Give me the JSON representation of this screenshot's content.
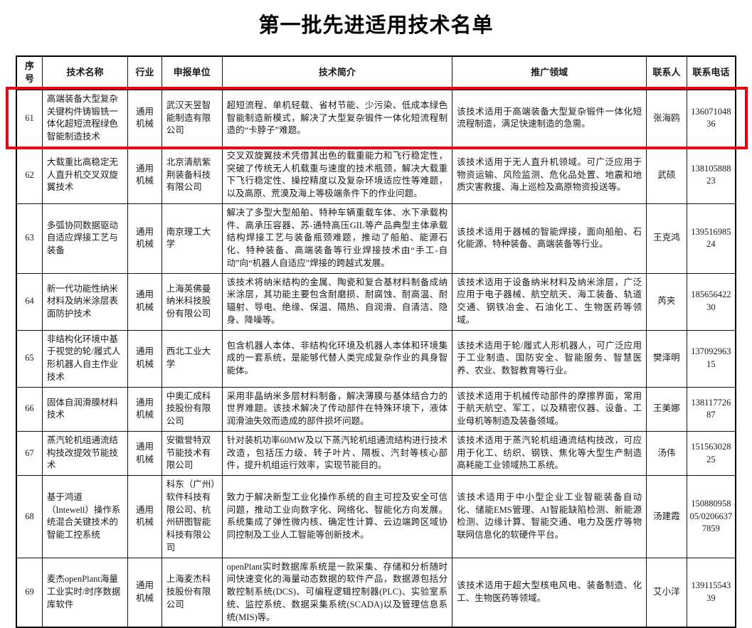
{
  "title": "第一批先进适用技术名单",
  "accent_red": "#e60012",
  "table": {
    "headers": [
      "序号",
      "技术名称",
      "行业",
      "申报单位",
      "技术简介",
      "推广领域",
      "联系人",
      "联系电话"
    ],
    "rows": [
      {
        "no": "61",
        "name": "高端装备大型复杂关键构件铸锻铣一体化超短流程绿色智能制造技术",
        "industry": "通用机械",
        "org": "武汉天昱智能制造有限公司",
        "brief": "超短流程、单机轻载、省材节能、少污染、低成本绿色智能制造新模式，解决了大型复杂锻件一体化短流程制造的“卡脖子”难题。",
        "field": "该技术适用于高端装备大型复杂锻件一体化短流程制造，满足快速制造的急需。",
        "contact": "张海鸥",
        "phone": "13607104836",
        "highlighted": true
      },
      {
        "no": "62",
        "name": "大载重比高稳定无人直升机交叉双旋翼技术",
        "industry": "通用机械",
        "org": "北京清航紫荆装备科技有限公司",
        "brief": "交叉双旋翼技术凭借其出色的载重能力和飞行稳定性，突破了传统无人机载重与速度的技术瓶颈，解决大载重下飞行稳定性、操控精度以及复杂环境适应性等难题，以及高原、荒漠及海上等极端条件下的作业问题。",
        "field": "该技术适用于无人直升机领域。可广泛应用于物资运输、风险监测、危化品处置、地震和地质灾害救援、海上巡检及高原物资投送等。",
        "contact": "武硕",
        "phone": "13810588823",
        "highlighted": false
      },
      {
        "no": "63",
        "name": "多弧协同数据驱动自适应焊接工艺与装备",
        "industry": "通用机械",
        "org": "南京理工大学",
        "brief": "解决了多型大型船舶、特种车辆重载车体、水下承载构件、高承压容器、苏-通特高压GIL等产品典型主体承载结构焊接工艺与装备瓶颈难题，推动了船舶、能源石化、特种装备、高端装备等行业焊接技术由“手工-自动”向“机器人自适应”焊接的跨越式发展。",
        "field": "该技术适用于器械的智能焊接，面向船舶、石化能源、特种装备、高端装备等行业。",
        "contact": "王克鸿",
        "phone": "13951698524",
        "highlighted": false
      },
      {
        "no": "64",
        "name": "新一代功能性纳米材料及纳米涂层表面防护技术",
        "industry": "通用机械",
        "org": "上海英佛曼纳米科技股份有限公司",
        "brief": "该技术将纳米结构的金属、陶瓷和复合基材料制备成纳米涂层，其功能主要包含耐磨损、耐腐蚀、耐高温、耐辐射、导电、绝缘、保温、隔热、自润滑、自清洁、隐身、降噪等。",
        "field": "该技术适用于设备纳米材料及纳米涂层，广泛应用于电子器械、航空航天、海工装备、轨道交通、钢铁冶金、石油化工、生物医药等领域。",
        "contact": "芮夹",
        "phone": "18565642230",
        "highlighted": false
      },
      {
        "no": "65",
        "name": "非结构化环境中基于视觉的轮/履式人形机器人自主作业技术",
        "industry": "通用机械",
        "org": "西北工业大学",
        "brief": "包含机器人本体、非结构化环境及机器人本体和环境集成的一套系统，是能够代替人类完成复杂作业的具身智能体。",
        "field": "该技术适用于轮/履式人形机器人，可广泛应用于工业制造、国防安全、智能服务、智慧医养、农业、数智教育等行业。",
        "contact": "樊泽明",
        "phone": "13709296315",
        "highlighted": false
      },
      {
        "no": "66",
        "name": "固体自润滑膜材料技术",
        "industry": "通用机械",
        "org": "中奥汇成科技股份有限公司",
        "brief": "采用非晶纳米多层材料制备，解决薄膜与基体结合力的世界难题。该技术解决了传动部件在特殊环境下，液体润滑油失效而造成的部件损坏问题。",
        "field": "该技术适用于机械传动部件的摩擦界面，常用于航天航空、军工，以及精密仪器、设备、工业母机等制造及装备领域。",
        "contact": "王美娜",
        "phone": "13811772687",
        "highlighted": false
      },
      {
        "no": "67",
        "name": "蒸汽轮机组通流结构技改提效节能技术",
        "industry": "通用机械",
        "org": "安徽誉特双节能技术有限公司",
        "brief": "针对装机功率60MW及以下蒸汽轮机组通流结构进行技术改造，包括压力级、转子叶片、隔板、汽封等核心部件，提升机组运行效率，实现节能目的。",
        "field": "该技术适用于蒸汽轮机组通流结构技改，可应用于化工、纺织、钢铁、焦化等大型生产制造高耗能工业领域热工系统。",
        "contact": "汤伟",
        "phone": "15156302825",
        "highlighted": false
      },
      {
        "no": "68",
        "name": "基于鸿道（Intewell）操作系统混合关键技术的智能工控系统",
        "industry": "通用机械",
        "org": "科东（广州）软件科技有限公司、杭州研图智能科技有限公司",
        "brief": "致力于解决新型工业化操作系统的自主可控及安全可信问题，推动工业向数字化、网络化、智能化方向发展。系统集成了弹性微内核、确定性计算、云边端跨区域协同控制及工业人工智能等创新技术。",
        "field": "该技术适用于中小型企业工业智能装备自动化、储能EMS管理、AI智能缺陷检测、新能源检测、边缘计算、智能交通、电力及医疗等物联网信息化的软硬件平台。",
        "contact": "汤建霞",
        "phone": "15088095805/02066377859",
        "highlighted": false
      },
      {
        "no": "69",
        "name": "麦杰openPlant海量工业实时/时序数据库软件",
        "industry": "通用机械",
        "org": "上海麦杰科技股份有限公司",
        "brief": "openPlant实时数据库系统是一款采集、存储和分析随时间快速变化的海量动态数据的软件产品，数据源包括分散控制系统(DCS)、可编程逻辑控制器(PLC)、实验室系统、监控系统、数据采集系统(SCADA)以及管理信息系统(MIS)等。",
        "field": "该技术适用于超大型核电风电、装备制造、化工、生物医药等领域。",
        "contact": "艾小洋",
        "phone": "13911554339",
        "highlighted": false
      }
    ]
  }
}
